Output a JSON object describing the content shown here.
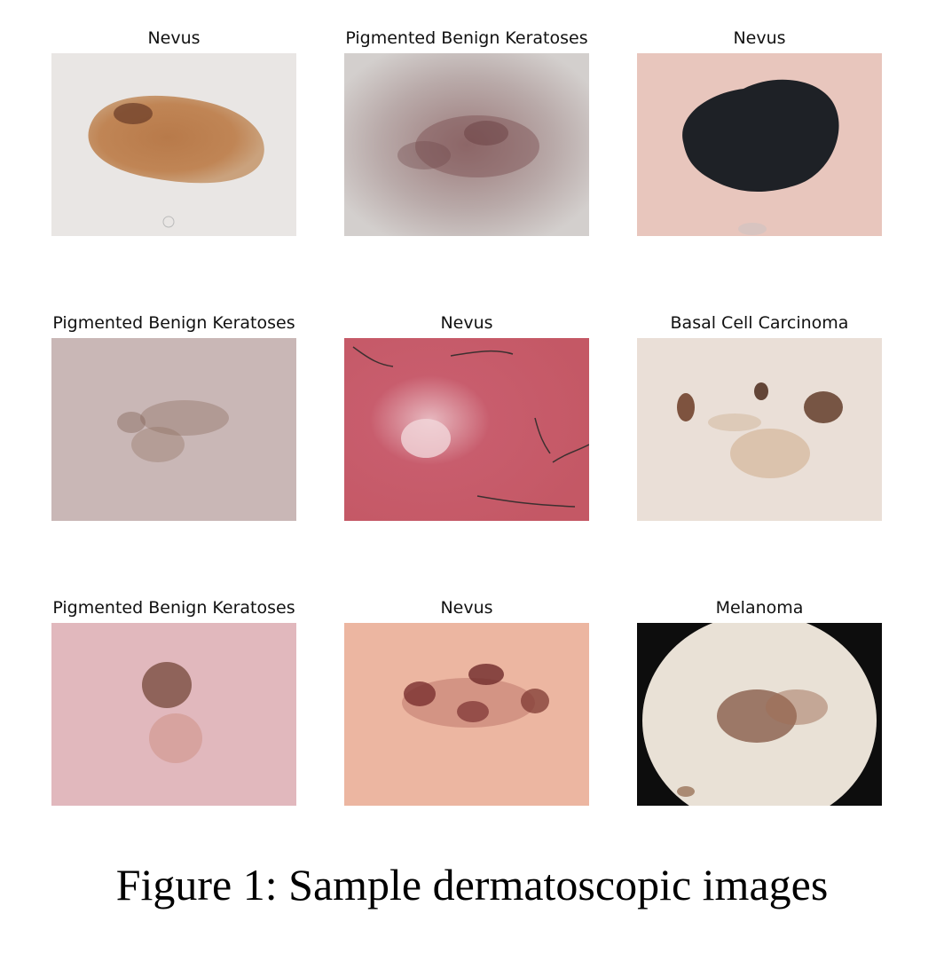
{
  "figure": {
    "caption": "Figure 1: Sample dermatoscopic images",
    "panels": [
      {
        "title": "Nevus"
      },
      {
        "title": "Pigmented Benign Keratoses"
      },
      {
        "title": "Nevus"
      },
      {
        "title": "Pigmented Benign Keratoses"
      },
      {
        "title": "Nevus"
      },
      {
        "title": "Basal Cell Carcinoma"
      },
      {
        "title": "Pigmented Benign Keratoses"
      },
      {
        "title": "Nevus"
      },
      {
        "title": "Melanoma"
      }
    ]
  }
}
